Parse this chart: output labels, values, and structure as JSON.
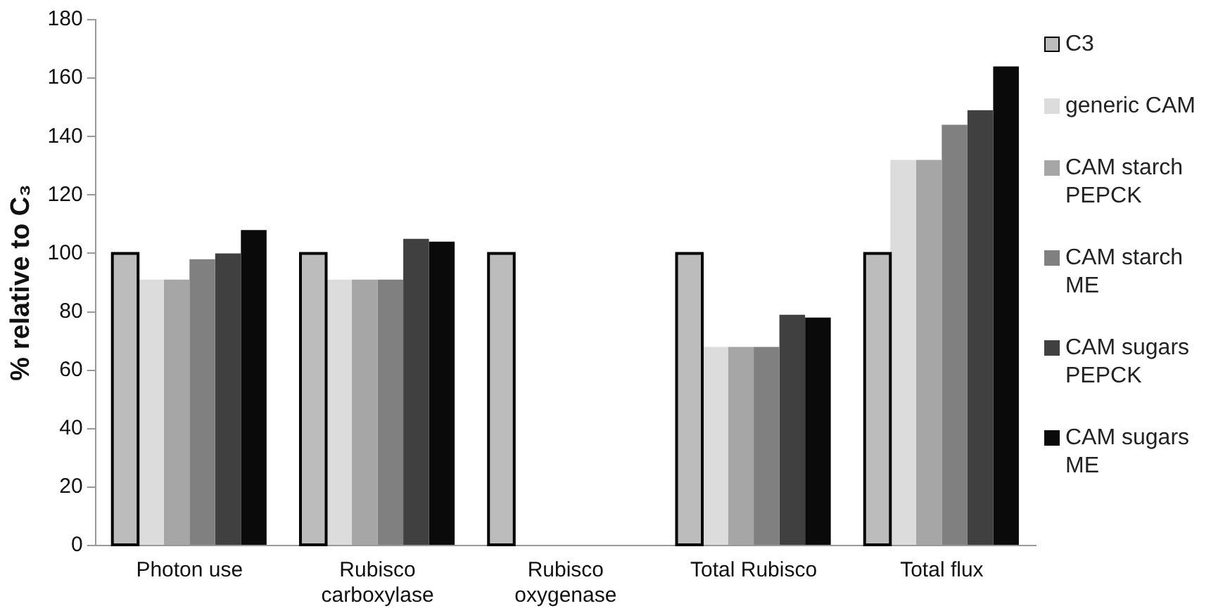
{
  "chart_data": {
    "type": "bar",
    "ylabel": "% relative to C₃",
    "categories": [
      "Photon use",
      "Rubisco carboxylase",
      "Rubisco oxygenase",
      "Total Rubisco",
      "Total flux"
    ],
    "series": [
      {
        "name": "C3",
        "color": "#bcbcbc",
        "values": [
          100,
          100,
          100,
          100,
          100
        ]
      },
      {
        "name": "generic CAM",
        "color": "#dcdcdc",
        "values": [
          91,
          91,
          0,
          68,
          132
        ]
      },
      {
        "name": "CAM starch PEPCK",
        "color": "#a6a6a6",
        "values": [
          91,
          91,
          0,
          68,
          132
        ]
      },
      {
        "name": "CAM starch ME",
        "color": "#808080",
        "values": [
          98,
          91,
          0,
          68,
          144
        ]
      },
      {
        "name": "CAM sugars PEPCK",
        "color": "#404040",
        "values": [
          100,
          105,
          0,
          79,
          149
        ]
      },
      {
        "name": "CAM sugars ME",
        "color": "#0a0a0a",
        "values": [
          108,
          104,
          0,
          78,
          164
        ]
      }
    ],
    "ylim": [
      0,
      180
    ],
    "yticks": [
      0,
      20,
      40,
      60,
      80,
      100,
      120,
      140,
      160,
      180
    ],
    "grid": false,
    "legend": "right"
  }
}
